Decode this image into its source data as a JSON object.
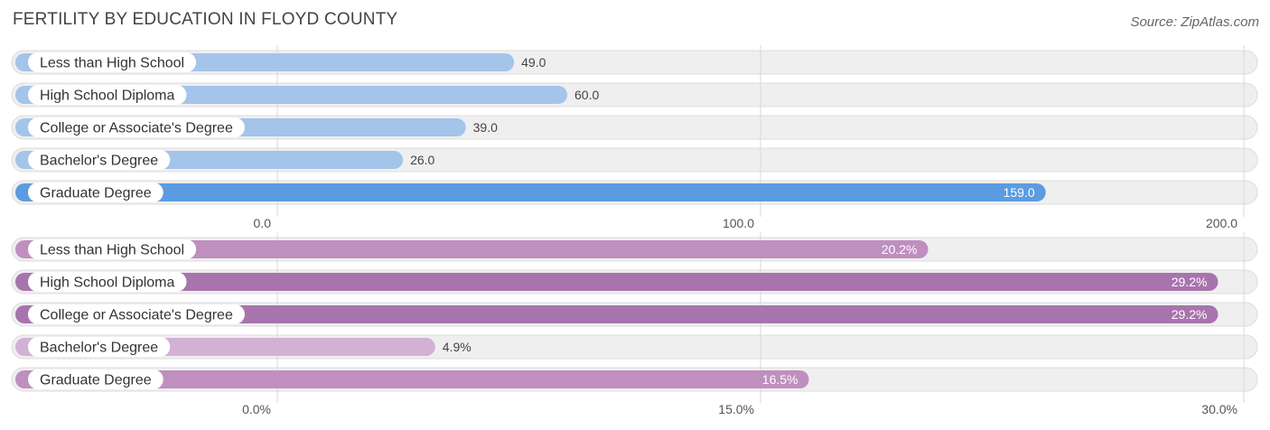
{
  "title": "FERTILITY BY EDUCATION IN FLOYD COUNTY",
  "source": "Source: ZipAtlas.com",
  "chart_data": [
    {
      "type": "bar",
      "orientation": "horizontal",
      "categories": [
        "Less than High School",
        "High School Diploma",
        "College or Associate's Degree",
        "Bachelor's Degree",
        "Graduate Degree"
      ],
      "values": [
        49.0,
        60.0,
        39.0,
        26.0,
        159.0
      ],
      "value_labels": [
        "49.0",
        "60.0",
        "39.0",
        "26.0",
        "159.0"
      ],
      "xlim": [
        0,
        200
      ],
      "ticks": [
        "0.0",
        "100.0",
        "200.0"
      ],
      "tick_values": [
        0,
        100,
        200
      ],
      "colors": [
        "#a4c4ea",
        "#a4c4ea",
        "#a4c4ea",
        "#a4c4ea",
        "#5b9ce0"
      ],
      "grid": true
    },
    {
      "type": "bar",
      "orientation": "horizontal",
      "categories": [
        "Less than High School",
        "High School Diploma",
        "College or Associate's Degree",
        "Bachelor's Degree",
        "Graduate Degree"
      ],
      "values": [
        20.2,
        29.2,
        29.2,
        4.9,
        16.5
      ],
      "value_labels": [
        "20.2%",
        "29.2%",
        "29.2%",
        "4.9%",
        "16.5%"
      ],
      "xlim": [
        0,
        30
      ],
      "ticks": [
        "0.0%",
        "15.0%",
        "30.0%"
      ],
      "tick_values": [
        0,
        15,
        30
      ],
      "colors": [
        "#bf8fbf",
        "#a874ad",
        "#a874ad",
        "#d2b1d4",
        "#bf8fbf"
      ],
      "grid": true
    }
  ]
}
